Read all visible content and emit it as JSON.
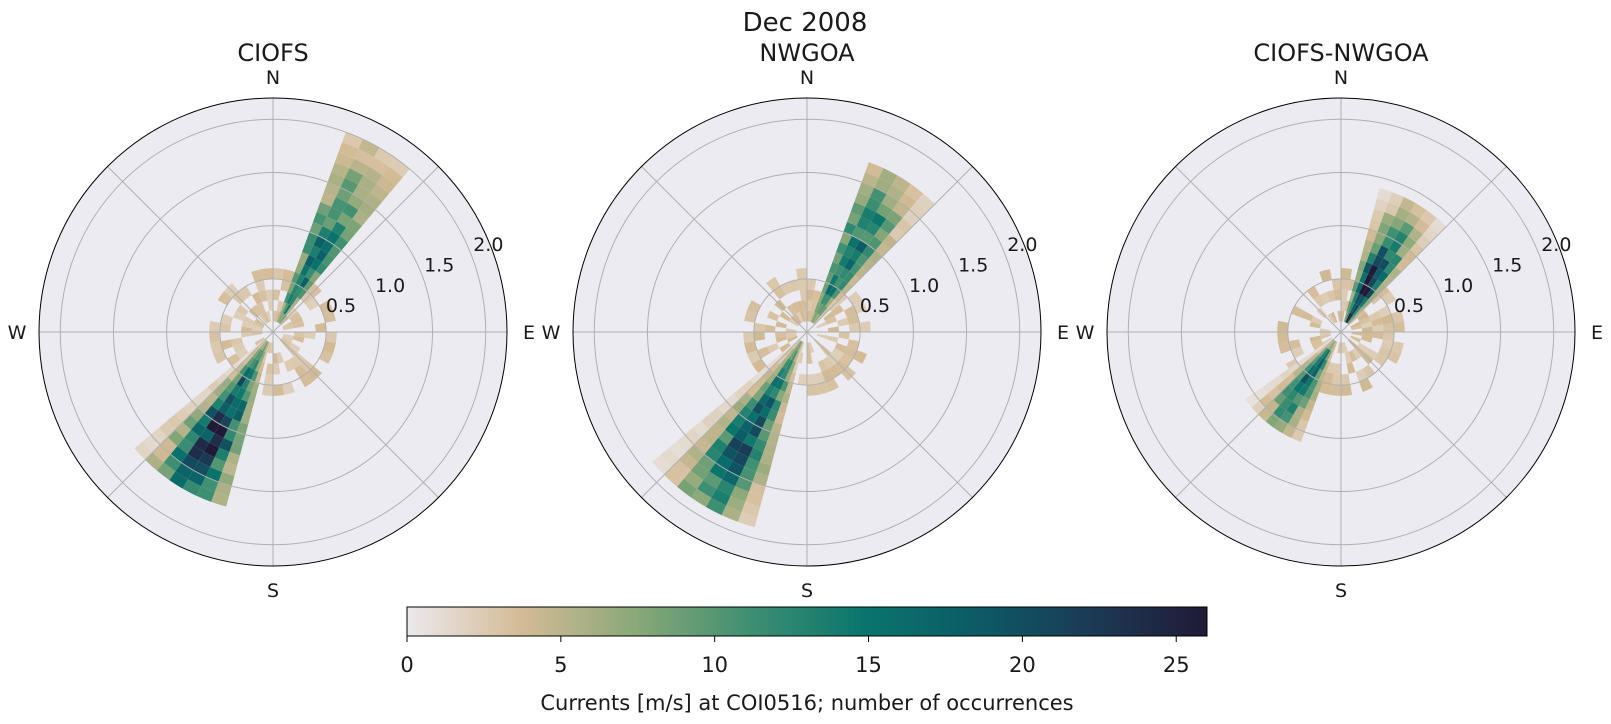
{
  "figure": {
    "title": "Dec 2008"
  },
  "colorbar": {
    "label": "Currents [m/s] at COI0516; number of occurrences",
    "min": 0,
    "max": 26,
    "ticks": [
      0,
      5,
      10,
      15,
      20,
      25
    ],
    "colormap": [
      "#ebe9ec",
      "#d4bb96",
      "#8aa878",
      "#3e8f72",
      "#0a756c",
      "#0c5a66",
      "#1c3a55",
      "#201a36"
    ]
  },
  "chart_data": [
    {
      "type": "polar-histogram",
      "title": "CIOFS",
      "direction_labels": [
        "N",
        "E",
        "S",
        "W"
      ],
      "radial_ticks": [
        0.5,
        1.0,
        1.5,
        2.0
      ],
      "radial_tick_labels": [
        "0.5",
        "1.0",
        "1.5",
        "2.0"
      ],
      "rlim": [
        0,
        2.2
      ],
      "grid": true,
      "sector_width_deg": 10,
      "bin_width": 0.1,
      "lobes": [
        {
          "center_deg": 30,
          "dir_start": 20,
          "dir_end": 40,
          "r_start": 0.1,
          "r_end": 2.0,
          "peak_r": 0.75,
          "peak_count": 15
        },
        {
          "center_deg": 210,
          "dir_start": 195,
          "dir_end": 230,
          "r_start": 0.1,
          "r_end": 1.7,
          "peak_r": 1.05,
          "peak_count": 24
        }
      ]
    },
    {
      "type": "polar-histogram",
      "title": "NWGOA",
      "direction_labels": [
        "N",
        "E",
        "S",
        "W"
      ],
      "radial_ticks": [
        0.5,
        1.0,
        1.5,
        2.0
      ],
      "radial_tick_labels": [
        "0.5",
        "1.0",
        "1.5",
        "2.0"
      ],
      "rlim": [
        0,
        2.2
      ],
      "grid": true,
      "sector_width_deg": 10,
      "bin_width": 0.1,
      "lobes": [
        {
          "center_deg": 30,
          "dir_start": 20,
          "dir_end": 45,
          "r_start": 0.1,
          "r_end": 1.7,
          "peak_r": 0.8,
          "peak_count": 16
        },
        {
          "center_deg": 210,
          "dir_start": 195,
          "dir_end": 230,
          "r_start": 0.1,
          "r_end": 1.9,
          "peak_r": 1.1,
          "peak_count": 19
        }
      ]
    },
    {
      "type": "polar-histogram",
      "title": "CIOFS-NWGOA",
      "direction_labels": [
        "N",
        "E",
        "S",
        "W"
      ],
      "radial_ticks": [
        0.5,
        1.0,
        1.5,
        2.0
      ],
      "radial_tick_labels": [
        "0.5",
        "1.0",
        "1.5",
        "2.0"
      ],
      "rlim": [
        0,
        2.2
      ],
      "grid": true,
      "sector_width_deg": 10,
      "bin_width": 0.1,
      "lobes": [
        {
          "center_deg": 30,
          "dir_start": 15,
          "dir_end": 45,
          "r_start": 0.1,
          "r_end": 1.4,
          "peak_r": 0.4,
          "peak_count": 26
        },
        {
          "center_deg": 215,
          "dir_start": 200,
          "dir_end": 235,
          "r_start": 0.1,
          "r_end": 1.1,
          "peak_r": 0.55,
          "peak_count": 17
        }
      ]
    }
  ]
}
